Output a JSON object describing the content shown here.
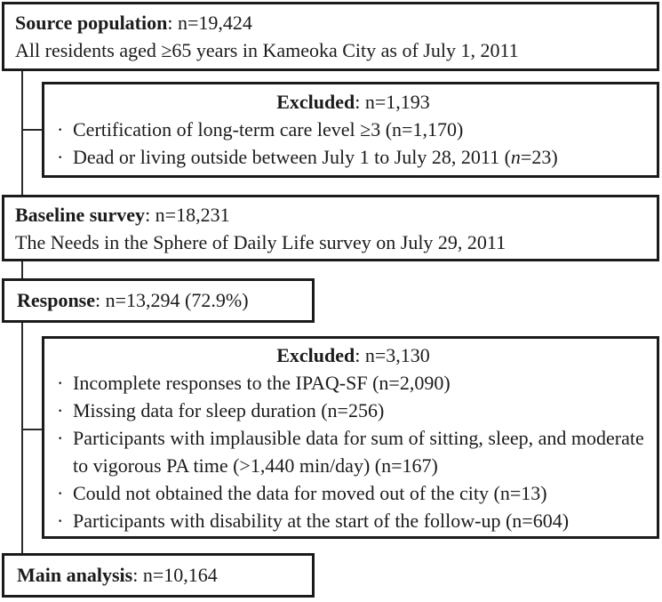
{
  "diagram": {
    "bullet_glyph": "·",
    "colors": {
      "border": "#1b1b1b",
      "text": "#1b1b1b",
      "connector": "#2b2b2b",
      "background": "#ffffff"
    },
    "boxes": {
      "source": {
        "title": "Source population",
        "count": ": n=19,424",
        "description": "All residents aged ≥65 years in Kameoka City as of July 1, 2011"
      },
      "excluded1": {
        "title": "Excluded",
        "count": ": n=1,193",
        "items": [
          "Certification of long-term care level ≥3 (n=1,170)",
          {
            "pre": "Dead or living outside between July 1 to July 28, 2011 (",
            "italic": "n",
            "post": "=23)"
          }
        ]
      },
      "baseline": {
        "title": "Baseline survey",
        "count": ": n=18,231",
        "description": "The Needs in the Sphere of Daily Life survey on July 29, 2011"
      },
      "response": {
        "title": "Response",
        "count": ": n=13,294 (72.9%)"
      },
      "excluded2": {
        "title": "Excluded",
        "count": ": n=3,130",
        "items": [
          "Incomplete responses to the IPAQ-SF (n=2,090)",
          "Missing data for sleep duration (n=256)",
          "Participants with implausible data for sum of sitting, sleep, and moderate to vigorous PA time (>1,440 min/day) (n=167)",
          "Could not obtained the data for moved out of the city (n=13)",
          "Participants with disability at the start of the follow-up (n=604)"
        ]
      },
      "main": {
        "title": "Main analysis",
        "count": ": n=10,164"
      }
    }
  }
}
